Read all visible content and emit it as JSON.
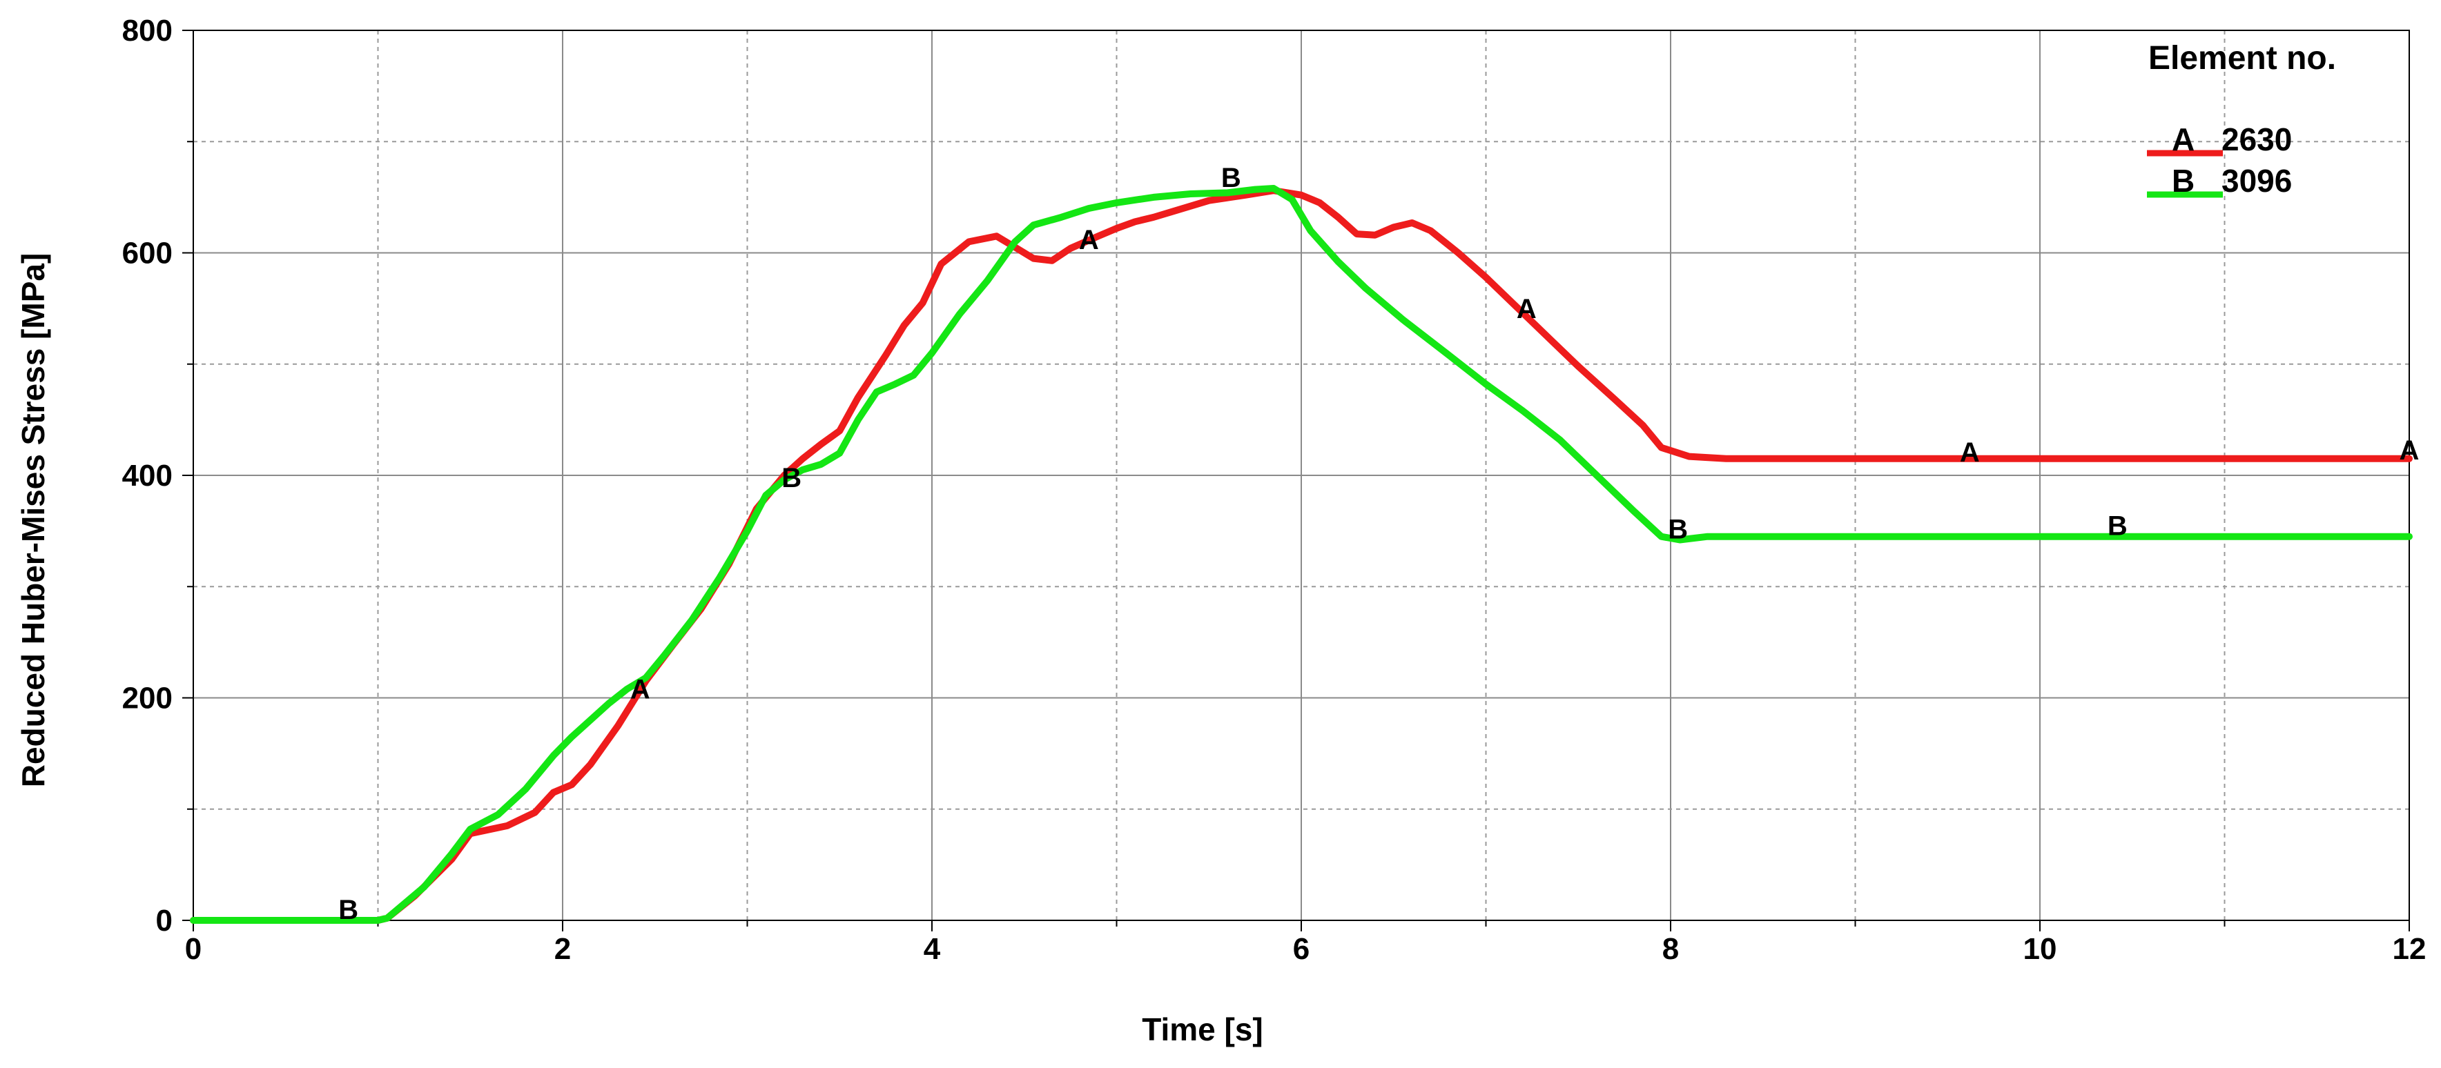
{
  "chart_data": {
    "type": "line",
    "title": "",
    "xlabel": "Time [s]",
    "ylabel": "Reduced Huber-Mises Stress [MPa]",
    "xlim": [
      0,
      12
    ],
    "ylim": [
      0,
      800
    ],
    "xticks": [
      0,
      2,
      4,
      6,
      8,
      10,
      12
    ],
    "yticks": [
      0,
      200,
      400,
      600,
      800
    ],
    "x_minor_gridlines": [
      1,
      3,
      5,
      7,
      9,
      11
    ],
    "y_minor_gridlines": [
      100,
      300,
      500,
      700
    ],
    "grid": true,
    "legend": {
      "title": "Element no.",
      "position": "top-right"
    },
    "series": [
      {
        "name": "2630",
        "marker": "A",
        "color": "#ee1c1c",
        "points": [
          [
            0,
            0
          ],
          [
            1.0,
            0
          ],
          [
            1.05,
            2
          ],
          [
            1.2,
            22
          ],
          [
            1.4,
            55
          ],
          [
            1.5,
            78
          ],
          [
            1.7,
            85
          ],
          [
            1.85,
            97
          ],
          [
            1.95,
            115
          ],
          [
            2.05,
            122
          ],
          [
            2.15,
            140
          ],
          [
            2.3,
            175
          ],
          [
            2.45,
            215
          ],
          [
            2.6,
            248
          ],
          [
            2.75,
            280
          ],
          [
            2.9,
            320
          ],
          [
            3.05,
            370
          ],
          [
            3.2,
            400
          ],
          [
            3.3,
            415
          ],
          [
            3.4,
            428
          ],
          [
            3.5,
            440
          ],
          [
            3.6,
            470
          ],
          [
            3.75,
            508
          ],
          [
            3.85,
            535
          ],
          [
            3.95,
            555
          ],
          [
            4.05,
            590
          ],
          [
            4.2,
            610
          ],
          [
            4.35,
            615
          ],
          [
            4.45,
            605
          ],
          [
            4.55,
            595
          ],
          [
            4.65,
            593
          ],
          [
            4.75,
            604
          ],
          [
            4.9,
            615
          ],
          [
            5.0,
            622
          ],
          [
            5.1,
            628
          ],
          [
            5.2,
            632
          ],
          [
            5.3,
            637
          ],
          [
            5.5,
            647
          ],
          [
            5.7,
            652
          ],
          [
            5.85,
            656
          ],
          [
            6.0,
            652
          ],
          [
            6.1,
            645
          ],
          [
            6.2,
            632
          ],
          [
            6.3,
            617
          ],
          [
            6.4,
            616
          ],
          [
            6.5,
            623
          ],
          [
            6.6,
            627
          ],
          [
            6.7,
            620
          ],
          [
            6.85,
            600
          ],
          [
            7.0,
            578
          ],
          [
            7.2,
            546
          ],
          [
            7.35,
            522
          ],
          [
            7.5,
            498
          ],
          [
            7.7,
            468
          ],
          [
            7.85,
            445
          ],
          [
            7.95,
            425
          ],
          [
            8.1,
            417
          ],
          [
            8.3,
            415
          ],
          [
            10,
            415
          ],
          [
            12,
            415
          ]
        ],
        "marker_labels": [
          [
            2.42,
            208
          ],
          [
            4.85,
            612
          ],
          [
            7.22,
            550
          ],
          [
            9.62,
            421
          ],
          [
            12.0,
            423
          ]
        ]
      },
      {
        "name": "3096",
        "marker": "B",
        "color": "#14e614",
        "points": [
          [
            0,
            0
          ],
          [
            1.0,
            0
          ],
          [
            1.05,
            2
          ],
          [
            1.25,
            30
          ],
          [
            1.4,
            60
          ],
          [
            1.5,
            82
          ],
          [
            1.65,
            95
          ],
          [
            1.8,
            118
          ],
          [
            1.95,
            148
          ],
          [
            2.05,
            165
          ],
          [
            2.15,
            180
          ],
          [
            2.25,
            195
          ],
          [
            2.35,
            208
          ],
          [
            2.45,
            218
          ],
          [
            2.55,
            238
          ],
          [
            2.7,
            270
          ],
          [
            2.85,
            308
          ],
          [
            3.0,
            350
          ],
          [
            3.1,
            382
          ],
          [
            3.2,
            396
          ],
          [
            3.3,
            405
          ],
          [
            3.4,
            410
          ],
          [
            3.5,
            420
          ],
          [
            3.6,
            450
          ],
          [
            3.7,
            475
          ],
          [
            3.8,
            482
          ],
          [
            3.9,
            490
          ],
          [
            4.0,
            510
          ],
          [
            4.15,
            545
          ],
          [
            4.3,
            575
          ],
          [
            4.45,
            610
          ],
          [
            4.55,
            625
          ],
          [
            4.7,
            632
          ],
          [
            4.85,
            640
          ],
          [
            5.0,
            645
          ],
          [
            5.2,
            650
          ],
          [
            5.4,
            653
          ],
          [
            5.6,
            654
          ],
          [
            5.75,
            657
          ],
          [
            5.85,
            658
          ],
          [
            5.95,
            648
          ],
          [
            6.05,
            620
          ],
          [
            6.2,
            592
          ],
          [
            6.35,
            568
          ],
          [
            6.55,
            540
          ],
          [
            6.8,
            508
          ],
          [
            7.0,
            482
          ],
          [
            7.2,
            458
          ],
          [
            7.4,
            432
          ],
          [
            7.6,
            400
          ],
          [
            7.8,
            368
          ],
          [
            7.95,
            345
          ],
          [
            8.05,
            342
          ],
          [
            8.2,
            345
          ],
          [
            10,
            345
          ],
          [
            12,
            345
          ]
        ],
        "marker_labels": [
          [
            0.84,
            10
          ],
          [
            3.24,
            398
          ],
          [
            5.62,
            668
          ],
          [
            8.04,
            352
          ],
          [
            10.42,
            355
          ]
        ]
      }
    ]
  }
}
